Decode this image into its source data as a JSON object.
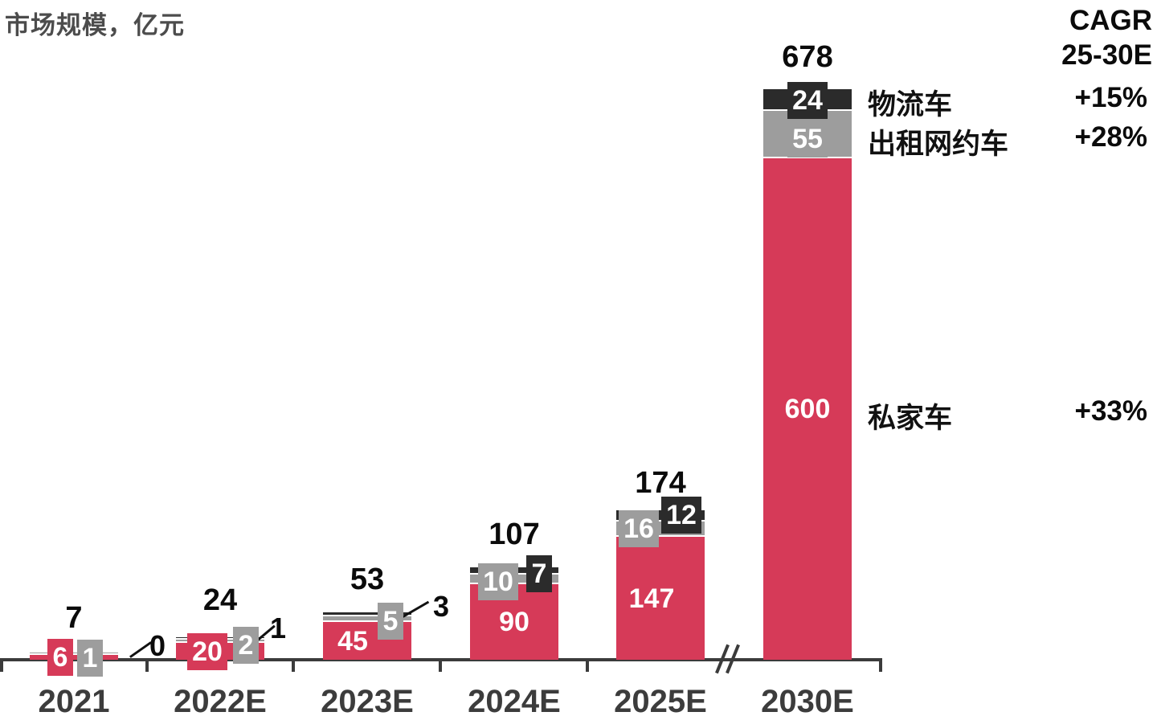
{
  "title": "市场规模，亿元",
  "cagr_header": {
    "line1": "CAGR",
    "line2": "25-30E"
  },
  "legend": [
    {
      "label": "物流车",
      "cagr": "+15%",
      "color": "#2B2B2B"
    },
    {
      "label": "出租网约车",
      "cagr": "+28%",
      "color": "#9D9D9D"
    },
    {
      "label": "私家车",
      "cagr": "+33%",
      "color": "#D63A58"
    }
  ],
  "chart_data": {
    "type": "bar",
    "stacked": true,
    "title": "市场规模，亿元",
    "unit": "亿元",
    "categories": [
      "2021",
      "2022E",
      "2023E",
      "2024E",
      "2025E",
      "2030E"
    ],
    "series": [
      {
        "name": "私家车",
        "color": "#D63A58",
        "values": [
          6,
          20,
          45,
          90,
          147,
          600
        ],
        "cagr_25_30e": "+33%"
      },
      {
        "name": "出租网约车",
        "color": "#9D9D9D",
        "values": [
          1,
          2,
          5,
          10,
          16,
          55
        ],
        "cagr_25_30e": "+28%"
      },
      {
        "name": "物流车",
        "color": "#2B2B2B",
        "values": [
          0,
          1,
          3,
          7,
          12,
          24
        ],
        "cagr_25_30e": "+15%"
      }
    ],
    "totals": [
      7,
      24,
      53,
      107,
      174,
      678
    ],
    "axis_break_after": "2025E",
    "legend_position": "right",
    "grid": false,
    "ylim": [
      0,
      700
    ]
  }
}
